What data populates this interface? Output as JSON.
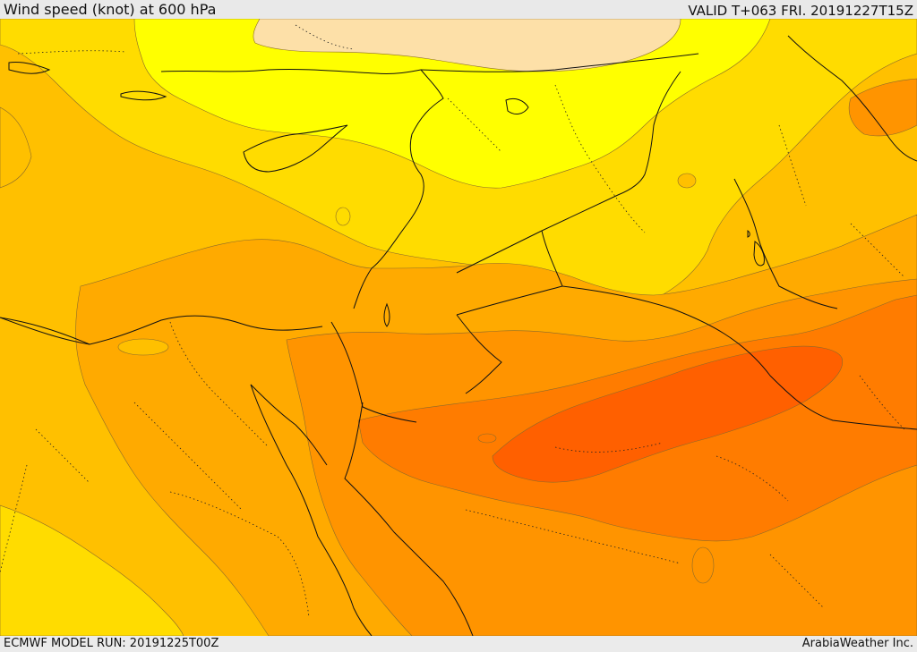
{
  "header": {
    "title": "Wind speed (knot) at 600 hPa",
    "valid": "VALID T+063 FRI. 20191227T15Z"
  },
  "footer": {
    "model_run": "ECMWF MODEL RUN: 20191225T00Z",
    "credit": "ArabiaWeather Inc."
  },
  "palette": {
    "pale_peach": "#fde0a8",
    "bright_yellow": "#ffff00",
    "light_gold": "#ffdc00",
    "gold": "#ffc000",
    "orange_gold": "#ffaa00",
    "orange": "#ff9400",
    "deep_orange": "#ff7c00",
    "red_orange": "#ff6000",
    "border": "#111111"
  }
}
